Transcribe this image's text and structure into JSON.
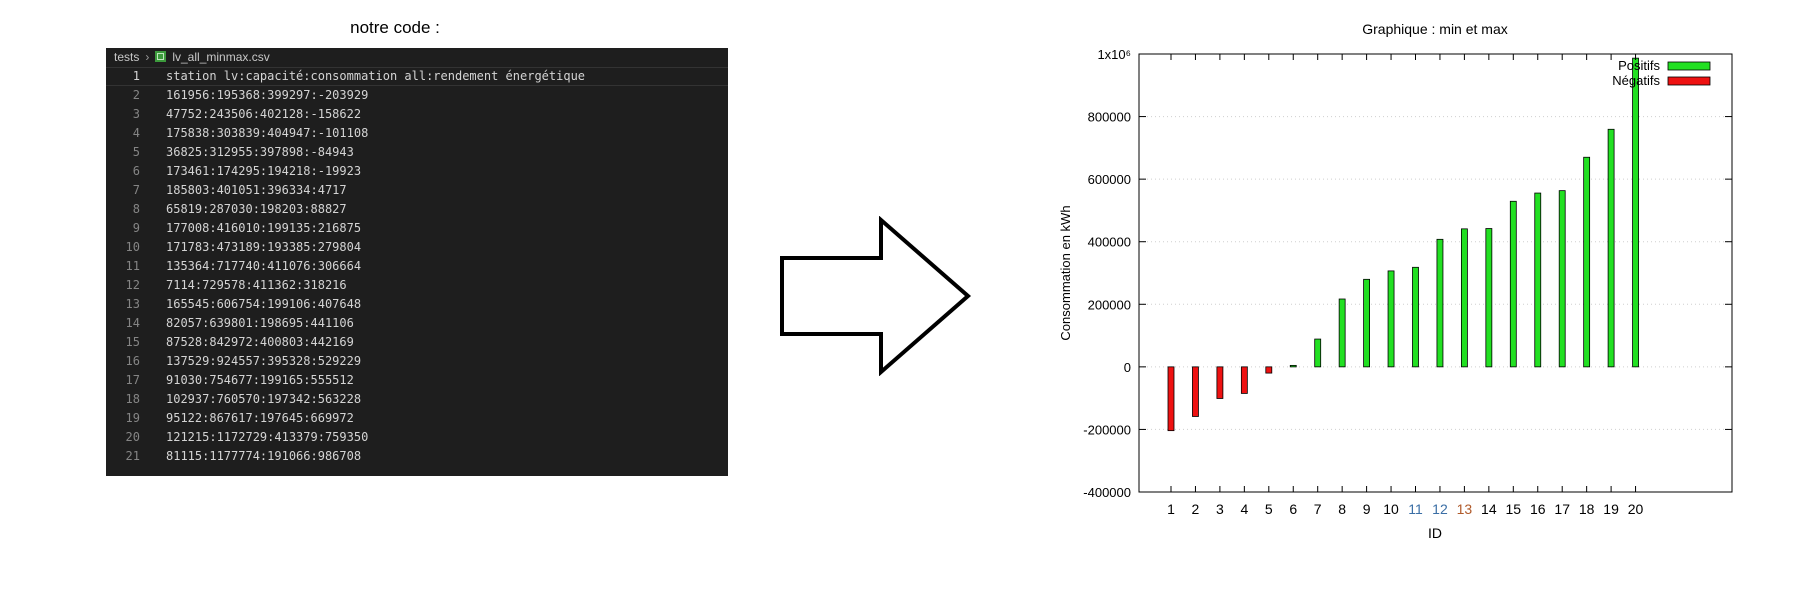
{
  "left_title": "notre code :",
  "editor": {
    "breadcrumb_folder": "tests",
    "breadcrumb_file": "lv_all_minmax.csv",
    "lines": [
      {
        "n": "1",
        "t": "station lv:capacité:consommation all:rendement énergétique"
      },
      {
        "n": "2",
        "t": "161956:195368:399297:-203929"
      },
      {
        "n": "3",
        "t": "47752:243506:402128:-158622"
      },
      {
        "n": "4",
        "t": "175838:303839:404947:-101108"
      },
      {
        "n": "5",
        "t": "36825:312955:397898:-84943"
      },
      {
        "n": "6",
        "t": "173461:174295:194218:-19923"
      },
      {
        "n": "7",
        "t": "185803:401051:396334:4717"
      },
      {
        "n": "8",
        "t": "65819:287030:198203:88827"
      },
      {
        "n": "9",
        "t": "177008:416010:199135:216875"
      },
      {
        "n": "10",
        "t": "171783:473189:193385:279804"
      },
      {
        "n": "11",
        "t": "135364:717740:411076:306664"
      },
      {
        "n": "12",
        "t": "7114:729578:411362:318216"
      },
      {
        "n": "13",
        "t": "165545:606754:199106:407648"
      },
      {
        "n": "14",
        "t": "82057:639801:198695:441106"
      },
      {
        "n": "15",
        "t": "87528:842972:400803:442169"
      },
      {
        "n": "16",
        "t": "137529:924557:395328:529229"
      },
      {
        "n": "17",
        "t": "91030:754677:199165:555512"
      },
      {
        "n": "18",
        "t": "102937:760570:197342:563228"
      },
      {
        "n": "19",
        "t": "95122:867617:197645:669972"
      },
      {
        "n": "20",
        "t": "121215:1172729:413379:759350"
      },
      {
        "n": "21",
        "t": "81115:1177774:191066:986708"
      }
    ]
  },
  "chart_data": {
    "type": "bar",
    "title": "Graphique : min et max",
    "xlabel": "ID",
    "ylabel": "Consommation en kWh",
    "categories": [
      "1",
      "2",
      "3",
      "4",
      "5",
      "6",
      "7",
      "8",
      "9",
      "10",
      "11",
      "12",
      "13",
      "14",
      "15",
      "16",
      "17",
      "18",
      "19",
      "20"
    ],
    "values": [
      -203929,
      -158622,
      -101108,
      -84943,
      -19923,
      4717,
      88827,
      216875,
      279804,
      306664,
      318216,
      407648,
      441106,
      442169,
      529229,
      555512,
      563228,
      669972,
      759350,
      986708
    ],
    "ylim": [
      -400000,
      1000000
    ],
    "yticks": [
      "-400000",
      "-200000",
      "0",
      "200000",
      "400000",
      "600000",
      "800000",
      "1x10⁶"
    ],
    "grid": true,
    "legend_position": "top-right",
    "series": [
      {
        "name": "Positifs",
        "color": "#22e022"
      },
      {
        "name": "Négatifs",
        "color": "#ee1111"
      }
    ],
    "xtick_colors": {
      "11": "#3a6ea5",
      "12": "#3a6ea5",
      "13": "#b05a2a"
    }
  }
}
